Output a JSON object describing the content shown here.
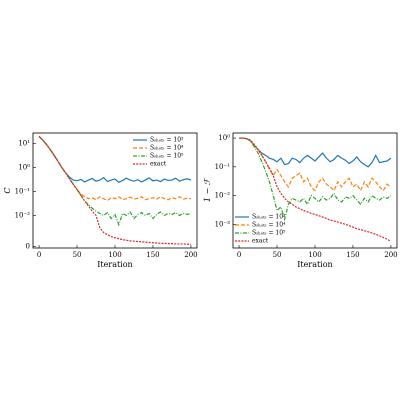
{
  "chart_data": [
    {
      "type": "line",
      "xlabel": "Iteration",
      "ylabel": "C",
      "yscale": "symlog",
      "linthresh": 0.01,
      "linscale": 1.3,
      "legend": "upper right",
      "x": [
        0,
        5,
        10,
        15,
        20,
        25,
        30,
        35,
        40,
        45,
        50,
        55,
        60,
        65,
        70,
        75,
        80,
        85,
        90,
        95,
        100,
        105,
        110,
        115,
        120,
        125,
        130,
        135,
        140,
        145,
        150,
        155,
        160,
        165,
        170,
        175,
        180,
        185,
        190,
        195,
        200
      ],
      "xlim": [
        -8,
        208
      ],
      "xticks": [
        0,
        50,
        100,
        150,
        200
      ],
      "ylim": [
        -0.0005,
        28
      ],
      "yticks": [
        0,
        {
          "value": 0.01,
          "label": "10⁻²"
        },
        {
          "value": 0.1,
          "label": "10⁻¹"
        },
        {
          "value": 1,
          "label": "10⁰"
        },
        {
          "value": 10,
          "label": "10¹"
        }
      ],
      "series": [
        {
          "name": "Sₛₕₒₜₛ = 10³",
          "color": "#1f77b4",
          "linestyle": "solid",
          "values": [
            20,
            14,
            9,
            5.5,
            3.2,
            1.8,
            1.0,
            0.6,
            0.4,
            0.3,
            0.28,
            0.32,
            0.25,
            0.3,
            0.35,
            0.27,
            0.3,
            0.38,
            0.26,
            0.3,
            0.33,
            0.24,
            0.29,
            0.36,
            0.3,
            0.27,
            0.31,
            0.25,
            0.3,
            0.37,
            0.28,
            0.3,
            0.26,
            0.33,
            0.29,
            0.3,
            0.36,
            0.27,
            0.31,
            0.34,
            0.3
          ]
        },
        {
          "name": "Sₛₕₒₜₛ = 10⁴",
          "color": "#ff7f0e",
          "linestyle": "dashed",
          "values": [
            20,
            14,
            9,
            5.5,
            3.2,
            1.8,
            1.0,
            0.6,
            0.35,
            0.2,
            0.12,
            0.08,
            0.06,
            0.05,
            0.055,
            0.045,
            0.06,
            0.05,
            0.042,
            0.055,
            0.05,
            0.06,
            0.045,
            0.05,
            0.058,
            0.048,
            0.052,
            0.06,
            0.045,
            0.05,
            0.055,
            0.048,
            0.06,
            0.05,
            0.045,
            0.055,
            0.05,
            0.06,
            0.048,
            0.052,
            0.05
          ]
        },
        {
          "name": "Sₛₕₒₜₛ = 10⁵",
          "color": "#2ca02c",
          "linestyle": "dashdot",
          "values": [
            20,
            14,
            9,
            5.5,
            3.2,
            1.8,
            1.0,
            0.6,
            0.35,
            0.2,
            0.12,
            0.07,
            0.04,
            0.028,
            0.02,
            0.015,
            0.012,
            0.01,
            0.013,
            0.009,
            0.011,
            0.007,
            0.012,
            0.01,
            0.014,
            0.009,
            0.011,
            0.013,
            0.01,
            0.012,
            0.009,
            0.011,
            0.014,
            0.01,
            0.012,
            0.011,
            0.013,
            0.01,
            0.012,
            0.011,
            0.012
          ]
        },
        {
          "name": "exact",
          "color": "#d62728",
          "linestyle": "dotted",
          "values": [
            20,
            14,
            9,
            5.5,
            3.2,
            1.8,
            1.0,
            0.6,
            0.35,
            0.2,
            0.12,
            0.07,
            0.04,
            0.025,
            0.015,
            0.01,
            0.006,
            0.0045,
            0.0038,
            0.0032,
            0.0028,
            0.0025,
            0.0022,
            0.002,
            0.0018,
            0.0017,
            0.0016,
            0.0015,
            0.0014,
            0.0013,
            0.0012,
            0.0011,
            0.001,
            0.001,
            0.0009,
            0.0009,
            0.0008,
            0.0008,
            0.0008,
            0.0007,
            0.0007
          ]
        }
      ]
    },
    {
      "type": "line",
      "xlabel": "Iteration",
      "ylabel": "1 − ℱ",
      "yscale": "log",
      "legend": "lower left",
      "x": [
        0,
        5,
        10,
        15,
        20,
        25,
        30,
        35,
        40,
        45,
        50,
        55,
        60,
        65,
        70,
        75,
        80,
        85,
        90,
        95,
        100,
        105,
        110,
        115,
        120,
        125,
        130,
        135,
        140,
        145,
        150,
        155,
        160,
        165,
        170,
        175,
        180,
        185,
        190,
        195,
        200
      ],
      "xlim": [
        -8,
        208
      ],
      "xticks": [
        0,
        50,
        100,
        150,
        200
      ],
      "ylim": [
        0.00015,
        1.5
      ],
      "yticks": [
        {
          "value": 0.001,
          "label": "10⁻³"
        },
        {
          "value": 0.01,
          "label": "10⁻²"
        },
        {
          "value": 0.1,
          "label": "10⁻¹"
        },
        {
          "value": 1,
          "label": "10⁰"
        }
      ],
      "series": [
        {
          "name": "Sₛₕₒₜₛ = 10³",
          "color": "#1f77b4",
          "linestyle": "solid",
          "values": [
            1,
            1,
            0.95,
            0.8,
            0.55,
            0.4,
            0.3,
            0.25,
            0.2,
            0.18,
            0.15,
            0.2,
            0.12,
            0.13,
            0.2,
            0.18,
            0.14,
            0.2,
            0.25,
            0.2,
            0.16,
            0.22,
            0.3,
            0.2,
            0.15,
            0.18,
            0.25,
            0.2,
            0.17,
            0.13,
            0.16,
            0.22,
            0.15,
            0.12,
            0.1,
            0.14,
            0.25,
            0.14,
            0.15,
            0.16,
            0.2
          ]
        },
        {
          "name": "Sₛₕₒₜₛ = 10⁴",
          "color": "#ff7f0e",
          "linestyle": "dashed",
          "values": [
            1,
            1,
            0.95,
            0.8,
            0.55,
            0.4,
            0.25,
            0.15,
            0.08,
            0.05,
            0.08,
            0.05,
            0.03,
            0.02,
            0.04,
            0.05,
            0.06,
            0.03,
            0.04,
            0.02,
            0.015,
            0.03,
            0.04,
            0.025,
            0.02,
            0.015,
            0.03,
            0.02,
            0.03,
            0.04,
            0.02,
            0.025,
            0.015,
            0.03,
            0.02,
            0.04,
            0.03,
            0.02,
            0.015,
            0.025,
            0.02
          ]
        },
        {
          "name": "Sₛₕₒₜₛ = 10⁵",
          "color": "#2ca02c",
          "linestyle": "dashdot",
          "values": [
            1,
            1,
            0.95,
            0.8,
            0.5,
            0.3,
            0.15,
            0.07,
            0.03,
            0.01,
            0.003,
            0.004,
            0.0015,
            0.005,
            0.008,
            0.007,
            0.006,
            0.008,
            0.005,
            0.01,
            0.008,
            0.006,
            0.009,
            0.007,
            0.008,
            0.012,
            0.007,
            0.006,
            0.009,
            0.008,
            0.01,
            0.007,
            0.005,
            0.008,
            0.006,
            0.01,
            0.008,
            0.007,
            0.009,
            0.008,
            0.01
          ]
        },
        {
          "name": "exact",
          "color": "#d62728",
          "linestyle": "dotted",
          "values": [
            1,
            1,
            0.95,
            0.85,
            0.6,
            0.4,
            0.25,
            0.15,
            0.09,
            0.05,
            0.02,
            0.012,
            0.008,
            0.006,
            0.005,
            0.004,
            0.0035,
            0.003,
            0.0027,
            0.0024,
            0.0022,
            0.002,
            0.0018,
            0.0016,
            0.0014,
            0.0013,
            0.0012,
            0.0011,
            0.001,
            0.0009,
            0.0008,
            0.0007,
            0.00065,
            0.0006,
            0.00055,
            0.0005,
            0.00045,
            0.0004,
            0.00035,
            0.0003,
            0.00026
          ]
        }
      ]
    }
  ]
}
